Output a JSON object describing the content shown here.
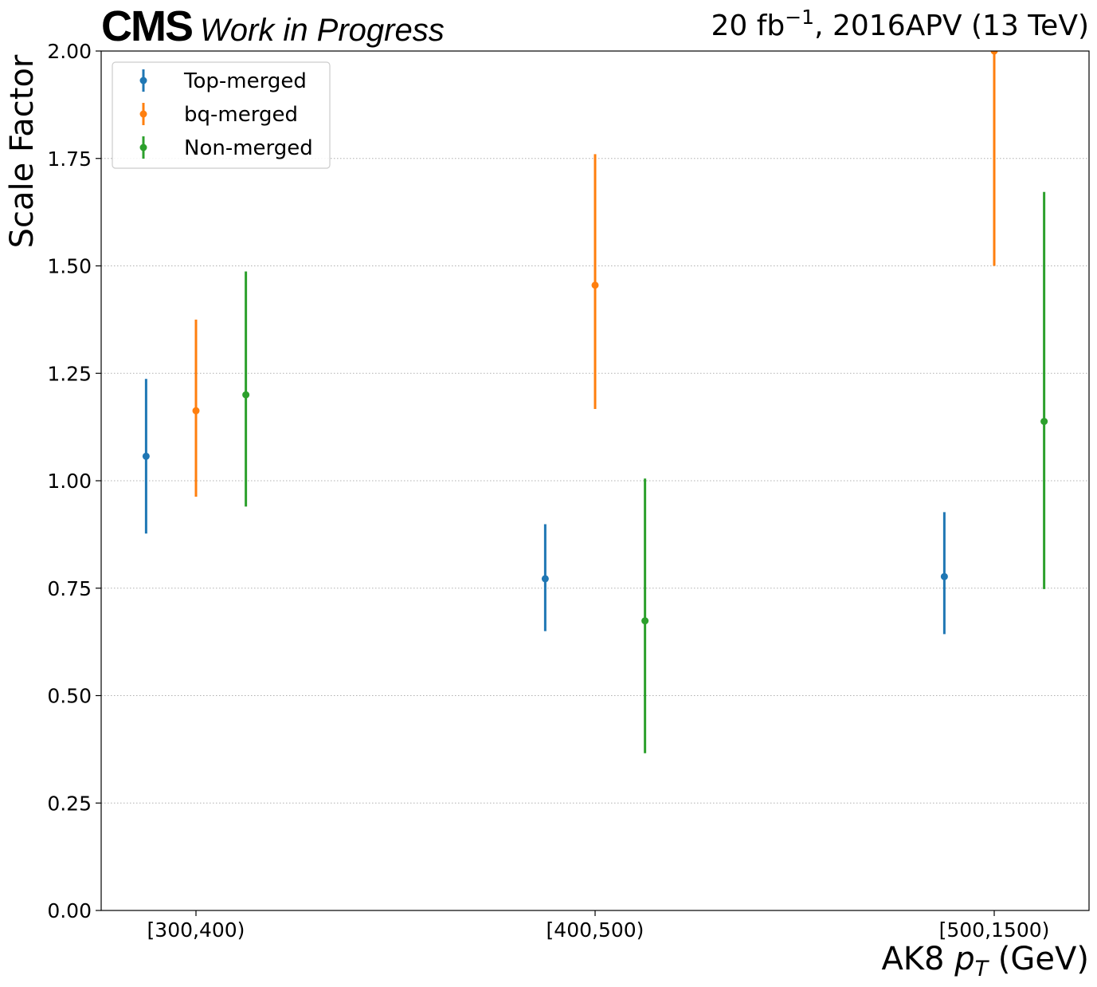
{
  "header": {
    "experiment": "CMS",
    "status": "Work in Progress",
    "lumi_prefix": "20 fb",
    "lumi_exponent": "−1",
    "lumi_suffix": ", 2016APV (13 TeV)"
  },
  "axes": {
    "ylabel": "Scale Factor",
    "xlabel_prefix": "AK8 ",
    "xlabel_var": "p",
    "xlabel_sub": "T",
    "xlabel_suffix": " (GeV)"
  },
  "chart_data": {
    "type": "scatter",
    "error_bars": true,
    "categories": [
      "[300,400)",
      "[400,500)",
      "[500,1500)"
    ],
    "ylim": [
      0.0,
      2.0
    ],
    "yticks": [
      "0.00",
      "0.25",
      "0.50",
      "0.75",
      "1.00",
      "1.25",
      "1.50",
      "1.75",
      "2.00"
    ],
    "grid": "y-dotted",
    "legend_position": "top-left",
    "series": [
      {
        "name": "Top-merged",
        "color": "#1f77b4",
        "offset": -0.25,
        "values": [
          1.057,
          0.772,
          0.777
        ],
        "err_low": [
          0.877,
          0.65,
          0.643
        ],
        "err_high": [
          1.237,
          0.899,
          0.927
        ]
      },
      {
        "name": "bq-merged",
        "color": "#ff7f0e",
        "offset": 0.0,
        "values": [
          1.163,
          1.455,
          2.0
        ],
        "err_low": [
          0.963,
          1.167,
          1.5
        ],
        "err_high": [
          1.375,
          1.76,
          2.5
        ]
      },
      {
        "name": "Non-merged",
        "color": "#2ca02c",
        "offset": 0.25,
        "values": [
          1.2,
          0.674,
          1.138
        ],
        "err_low": [
          0.94,
          0.366,
          0.748
        ],
        "err_high": [
          1.487,
          1.005,
          1.672
        ]
      }
    ]
  }
}
